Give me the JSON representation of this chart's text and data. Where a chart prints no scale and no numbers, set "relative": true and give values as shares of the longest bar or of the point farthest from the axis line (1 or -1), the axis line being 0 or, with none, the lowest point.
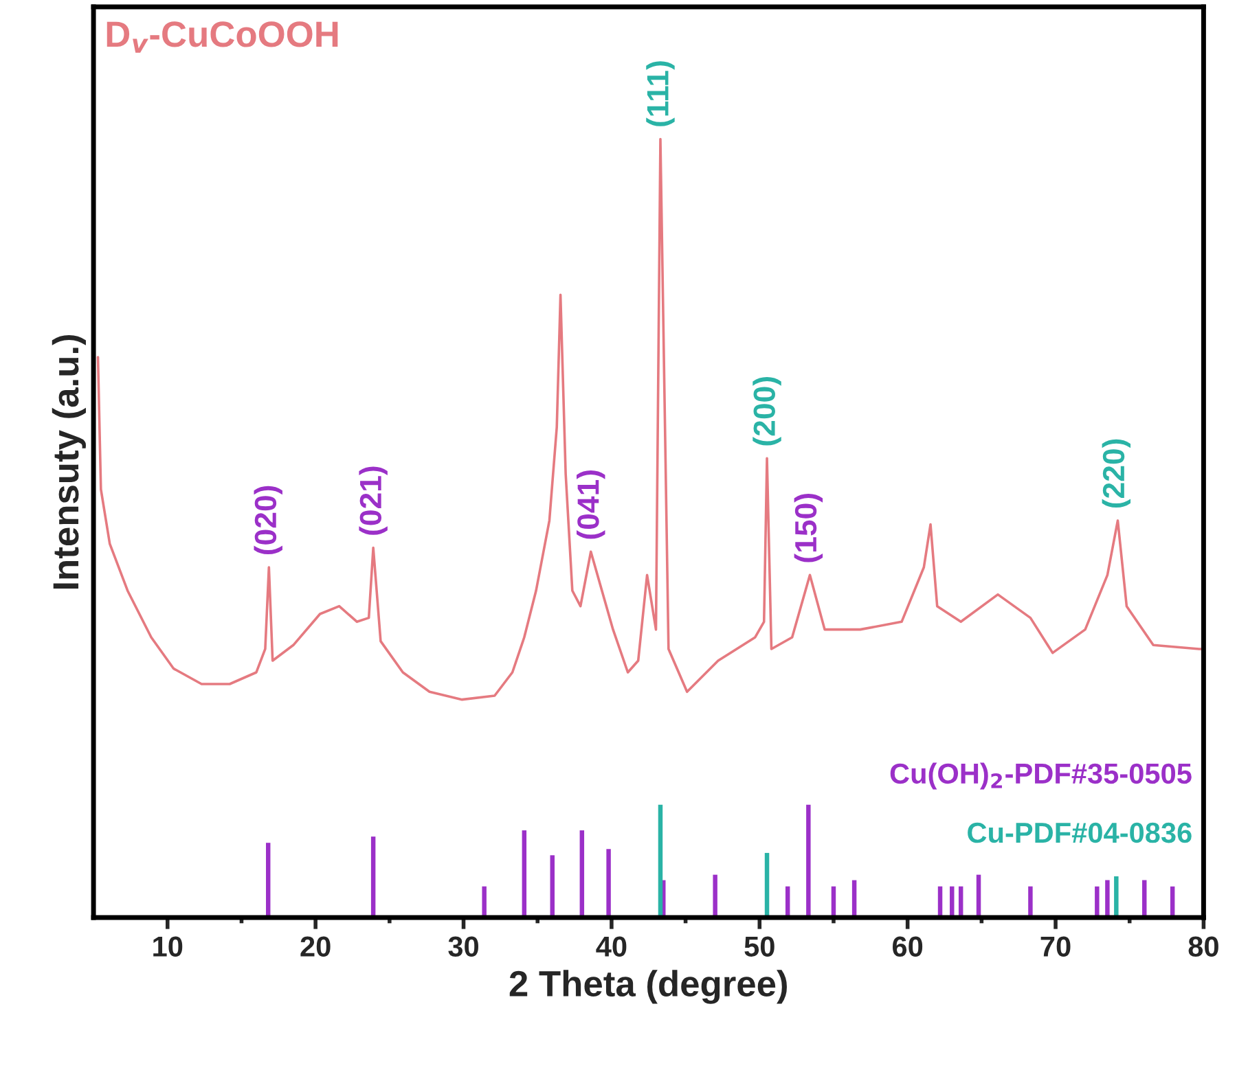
{
  "chart_data": {
    "type": "line",
    "xlabel": "2 Theta (degree)",
    "ylabel": "Intensuty (a.u.)",
    "relative": true,
    "xlim": [
      5,
      80
    ],
    "xticks": [
      10,
      20,
      30,
      40,
      50,
      60,
      70,
      80
    ],
    "grid": false,
    "series": [
      {
        "name": "D$_{v}$-CuCoOOH",
        "color": "#e57a80",
        "x": [
          5.3,
          5.5,
          6.1,
          7.3,
          8.9,
          10.4,
          12.3,
          14.2,
          16.0,
          16.6,
          16.85,
          17.1,
          18.5,
          20.3,
          21.6,
          22.8,
          23.6,
          23.9,
          24.4,
          25.9,
          27.7,
          29.9,
          32.1,
          33.3,
          34.1,
          34.9,
          35.8,
          36.3,
          36.55,
          36.9,
          37.35,
          37.9,
          38.6,
          39.2,
          40.1,
          41.1,
          41.8,
          42.4,
          43.0,
          43.3,
          43.85,
          45.1,
          47.2,
          49.7,
          50.3,
          50.5,
          50.8,
          52.2,
          53.4,
          54.4,
          56.8,
          59.6,
          61.1,
          61.55,
          62.0,
          63.6,
          66.1,
          68.3,
          69.8,
          72.0,
          73.5,
          74.2,
          74.8,
          76.6,
          79.7,
          80
        ],
        "values": [
          0.72,
          0.55,
          0.48,
          0.42,
          0.36,
          0.32,
          0.3,
          0.3,
          0.315,
          0.345,
          0.45,
          0.33,
          0.35,
          0.39,
          0.4,
          0.38,
          0.385,
          0.475,
          0.355,
          0.315,
          0.29,
          0.28,
          0.285,
          0.315,
          0.36,
          0.42,
          0.51,
          0.63,
          0.8,
          0.57,
          0.42,
          0.4,
          0.47,
          0.43,
          0.37,
          0.315,
          0.33,
          0.44,
          0.37,
          1.0,
          0.345,
          0.29,
          0.33,
          0.36,
          0.38,
          0.59,
          0.345,
          0.36,
          0.44,
          0.37,
          0.37,
          0.38,
          0.45,
          0.505,
          0.4,
          0.38,
          0.415,
          0.385,
          0.34,
          0.37,
          0.44,
          0.51,
          0.4,
          0.35,
          0.345,
          0.345
        ]
      },
      {
        "name": "Cu(OH)$_{2}$-PDF#35-0505",
        "type": "bar",
        "color": "#9b30c8",
        "x": [
          16.8,
          23.9,
          31.4,
          34.1,
          36.0,
          38.0,
          39.8,
          43.5,
          47.0,
          51.9,
          53.3,
          55.0,
          56.4,
          62.2,
          63.0,
          63.6,
          64.8,
          68.3,
          72.8,
          73.5,
          76.0,
          77.9
        ],
        "values": [
          0.096,
          0.104,
          0.04,
          0.112,
          0.08,
          0.112,
          0.088,
          0.048,
          0.055,
          0.04,
          0.145,
          0.04,
          0.048,
          0.04,
          0.04,
          0.04,
          0.055,
          0.04,
          0.04,
          0.048,
          0.048,
          0.04
        ]
      },
      {
        "name": "Cu-PDF#04-0836",
        "type": "bar",
        "color": "#2ab3a6",
        "x": [
          43.3,
          50.5,
          74.1
        ],
        "values": [
          0.145,
          0.083,
          0.053
        ]
      }
    ],
    "annotations": [
      {
        "text": "(020)",
        "x": 16.8,
        "y": 0.45
      },
      {
        "text": "(021)",
        "x": 23.9,
        "y": 0.475
      },
      {
        "text": "(041)",
        "x": 38.6,
        "y": 0.47
      },
      {
        "text": "(111)",
        "x": 43.3,
        "y": 1.0
      },
      {
        "text": "(200)",
        "x": 50.5,
        "y": 0.59
      },
      {
        "text": "(150)",
        "x": 53.3,
        "y": 0.44
      },
      {
        "text": "(220)",
        "x": 74.1,
        "y": 0.51
      }
    ]
  }
}
